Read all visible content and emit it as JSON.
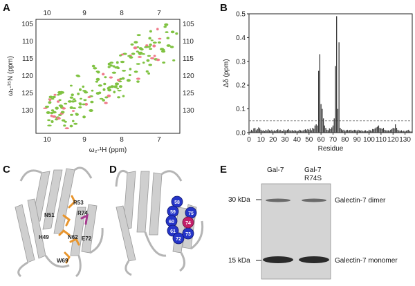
{
  "panels": {
    "A": {
      "label": "A",
      "x_top_ticks": [
        "10",
        "9",
        "8",
        "7"
      ],
      "x_bottom_ticks": [
        "10",
        "9",
        "8",
        "7"
      ],
      "y_ticks": [
        "105",
        "110",
        "115",
        "120",
        "125",
        "130"
      ],
      "xlabel": "ω₂-¹H (ppm)",
      "ylabel": "ω₁-¹⁵N (ppm)",
      "colors": {
        "spectrum_a": "#7fc241",
        "spectrum_b": "#f07a8a"
      }
    },
    "B": {
      "label": "B"
    },
    "C": {
      "label": "C",
      "residues": [
        "R53",
        "R74",
        "N51",
        "H49",
        "N62",
        "E72",
        "W69"
      ],
      "colors": {
        "ribbon": "#c9c9c9",
        "highlight": "#e8952d",
        "mutation": "#a63a8f"
      }
    },
    "D": {
      "label": "D",
      "spheres": [
        "58",
        "59",
        "60",
        "61",
        "72",
        "73",
        "75",
        "74"
      ],
      "colors": {
        "sphere": "#2535c8",
        "mutation_sphere": "#c21f6a"
      }
    },
    "E": {
      "label": "E",
      "lanes": [
        "Gal-7",
        "Gal-7",
        "R74S"
      ],
      "markers": [
        "30 kDa",
        "15 kDa"
      ],
      "bands": [
        "Galectin-7 dimer",
        "Galectin-7 monomer"
      ]
    }
  },
  "chart_data": {
    "type": "bar",
    "title": "",
    "xlabel": "Residue",
    "ylabel": "Δδ (ppm)",
    "xlim": [
      0,
      136
    ],
    "ylim": [
      0,
      0.5
    ],
    "x_ticks": [
      0,
      10,
      20,
      30,
      40,
      50,
      60,
      70,
      80,
      90,
      100,
      110,
      120,
      130
    ],
    "y_ticks": [
      0.0,
      0.1,
      0.2,
      0.3,
      0.4,
      0.5
    ],
    "threshold": 0.05,
    "grid": false,
    "x": [
      1,
      2,
      3,
      4,
      5,
      6,
      7,
      8,
      9,
      10,
      11,
      12,
      13,
      14,
      15,
      16,
      17,
      18,
      19,
      20,
      21,
      22,
      23,
      24,
      25,
      26,
      27,
      28,
      29,
      30,
      31,
      32,
      33,
      34,
      35,
      36,
      37,
      38,
      39,
      40,
      41,
      42,
      43,
      44,
      45,
      46,
      47,
      48,
      49,
      50,
      51,
      52,
      53,
      54,
      55,
      56,
      57,
      58,
      59,
      60,
      61,
      62,
      63,
      64,
      65,
      66,
      67,
      68,
      69,
      70,
      71,
      72,
      73,
      74,
      75,
      76,
      77,
      78,
      79,
      80,
      81,
      82,
      83,
      84,
      85,
      86,
      87,
      88,
      89,
      90,
      91,
      92,
      93,
      94,
      95,
      96,
      97,
      98,
      99,
      100,
      101,
      102,
      103,
      104,
      105,
      106,
      107,
      108,
      109,
      110,
      111,
      112,
      113,
      114,
      115,
      116,
      117,
      118,
      119,
      120,
      121,
      122,
      123,
      124,
      125,
      126,
      127,
      128,
      129,
      130,
      131,
      132,
      133,
      134,
      135,
      136
    ],
    "values": [
      0.005,
      0.012,
      0.008,
      0.018,
      0.02,
      0.01,
      0.015,
      0.022,
      0.018,
      0.012,
      0.008,
      0.01,
      0.006,
      0.012,
      0.009,
      0.014,
      0.01,
      0.008,
      0.012,
      0.006,
      0.01,
      0.007,
      0.011,
      0.014,
      0.009,
      0.012,
      0.008,
      0.006,
      0.013,
      0.01,
      0.009,
      0.012,
      0.015,
      0.01,
      0.008,
      0.011,
      0.007,
      0.01,
      0.009,
      0.006,
      0.008,
      0.012,
      0.01,
      0.007,
      0.009,
      0.012,
      0.014,
      0.01,
      0.015,
      0.012,
      0.018,
      0.01,
      0.02,
      0.016,
      0.03,
      0.035,
      0.03,
      0.26,
      0.33,
      0.12,
      0.1,
      0.06,
      0.03,
      0.02,
      0.012,
      0.01,
      0.018,
      0.015,
      0.022,
      0.03,
      0.06,
      0.28,
      0.49,
      0.1,
      0.38,
      0.02,
      0.014,
      0.01,
      0.012,
      0.008,
      0.01,
      0.012,
      0.009,
      0.011,
      0.012,
      0.008,
      0.01,
      0.012,
      0.01,
      0.009,
      0.012,
      0.01,
      0.008,
      0.01,
      0.006,
      0.008,
      0.01,
      0.007,
      0.006,
      0.012,
      0.01,
      0.008,
      0.015,
      0.014,
      0.018,
      0.022,
      0.025,
      0.03,
      0.02,
      0.018,
      0.015,
      0.02,
      0.012,
      0.01,
      0.009,
      0.01,
      0.008,
      0.012,
      0.015,
      0.02,
      0.018,
      0.035,
      0.02,
      0.012,
      0.009,
      0.007,
      0.01,
      0.006,
      0.008,
      0.005,
      0.008,
      0.01,
      0.012,
      0.006,
      0.005,
      0.004
    ]
  }
}
